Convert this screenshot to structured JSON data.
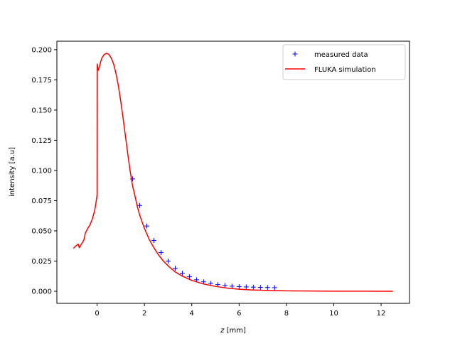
{
  "chart_data": {
    "type": "line",
    "xlabel_var": "z",
    "xlabel_unit": " [mm]",
    "ylabel": "intensity [a.u]",
    "xlim": [
      -1.7,
      13.2
    ],
    "ylim": [
      -0.01,
      0.207
    ],
    "x_ticks": [
      0,
      2,
      4,
      6,
      8,
      10,
      12
    ],
    "y_ticks": [
      0.0,
      0.025,
      0.05,
      0.075,
      0.1,
      0.125,
      0.15,
      0.175,
      0.2
    ],
    "x_tick_labels": [
      "0",
      "2",
      "4",
      "6",
      "8",
      "10",
      "12"
    ],
    "y_tick_labels": [
      "0.000",
      "0.025",
      "0.050",
      "0.075",
      "0.100",
      "0.125",
      "0.150",
      "0.175",
      "0.200"
    ],
    "grid": false,
    "legend_position": "top-right",
    "series": [
      {
        "name": "measured data",
        "kind": "markers",
        "marker": "+",
        "color": "#0000ff",
        "x": [
          1.5,
          1.8,
          2.1,
          2.4,
          2.7,
          3.0,
          3.3,
          3.6,
          3.9,
          4.2,
          4.5,
          4.8,
          5.1,
          5.4,
          5.7,
          6.0,
          6.3,
          6.6,
          6.9,
          7.2,
          7.5
        ],
        "y": [
          0.093,
          0.071,
          0.054,
          0.042,
          0.032,
          0.025,
          0.019,
          0.015,
          0.012,
          0.0095,
          0.0078,
          0.0065,
          0.0055,
          0.0048,
          0.0042,
          0.0038,
          0.0036,
          0.0034,
          0.0032,
          0.0031,
          0.003
        ]
      },
      {
        "name": "FLUKA simulation",
        "kind": "line",
        "color": "#ff0000",
        "x": [
          -1.0,
          -0.9,
          -0.8,
          -0.75,
          -0.7,
          -0.6,
          -0.55,
          -0.5,
          -0.45,
          -0.4,
          -0.3,
          -0.2,
          -0.1,
          -0.05,
          0.0,
          0.002,
          0.004,
          0.006,
          0.01,
          0.05,
          0.1,
          0.15,
          0.2,
          0.3,
          0.4,
          0.5,
          0.6,
          0.7,
          0.8,
          0.9,
          1.0,
          1.1,
          1.2,
          1.3,
          1.4,
          1.5,
          1.6,
          1.7,
          1.8,
          2.0,
          2.2,
          2.4,
          2.6,
          2.8,
          3.0,
          3.3,
          3.6,
          4.0,
          4.5,
          5.0,
          5.5,
          6.0,
          6.5,
          7.0,
          7.5,
          8.0,
          9.0,
          10.0,
          11.0,
          12.5
        ],
        "y": [
          0.0355,
          0.0375,
          0.039,
          0.036,
          0.038,
          0.041,
          0.043,
          0.048,
          0.05,
          0.052,
          0.055,
          0.06,
          0.067,
          0.073,
          0.08,
          0.12,
          0.16,
          0.185,
          0.188,
          0.183,
          0.186,
          0.19,
          0.193,
          0.196,
          0.197,
          0.196,
          0.193,
          0.188,
          0.18,
          0.17,
          0.157,
          0.143,
          0.128,
          0.113,
          0.099,
          0.087,
          0.079,
          0.07,
          0.063,
          0.052,
          0.043,
          0.036,
          0.03,
          0.025,
          0.021,
          0.016,
          0.0125,
          0.009,
          0.006,
          0.004,
          0.0026,
          0.0017,
          0.0011,
          0.0008,
          0.0005,
          0.0004,
          0.0002,
          0.0001,
          0.0001,
          0.0
        ]
      }
    ]
  }
}
